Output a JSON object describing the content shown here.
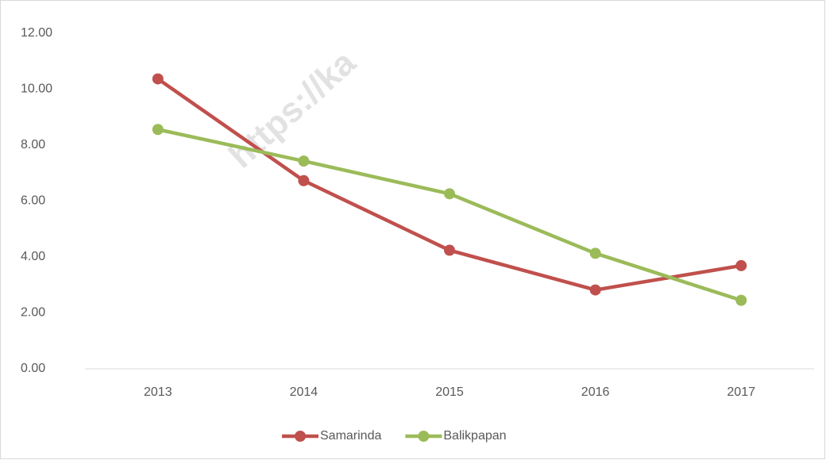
{
  "chart_data": {
    "type": "line",
    "watermark": "https://ka",
    "categories": [
      "2013",
      "2014",
      "2015",
      "2016",
      "2017"
    ],
    "series": [
      {
        "name": "Samarinda",
        "color": "#c0504d",
        "values": [
          10.37,
          6.73,
          4.24,
          2.82,
          3.69
        ]
      },
      {
        "name": "Balikpapan",
        "color": "#9bbb59",
        "values": [
          8.56,
          7.43,
          6.26,
          4.13,
          2.45
        ]
      }
    ],
    "ylim": [
      0,
      12
    ],
    "yticks": [
      {
        "value": 0,
        "label": "0.00"
      },
      {
        "value": 2,
        "label": "2.00"
      },
      {
        "value": 4,
        "label": "4.00"
      },
      {
        "value": 6,
        "label": "6.00"
      },
      {
        "value": 8,
        "label": "8.00"
      },
      {
        "value": 10,
        "label": "10.00"
      },
      {
        "value": 12,
        "label": "12.00"
      }
    ],
    "grid": false,
    "legend": "bottom"
  }
}
